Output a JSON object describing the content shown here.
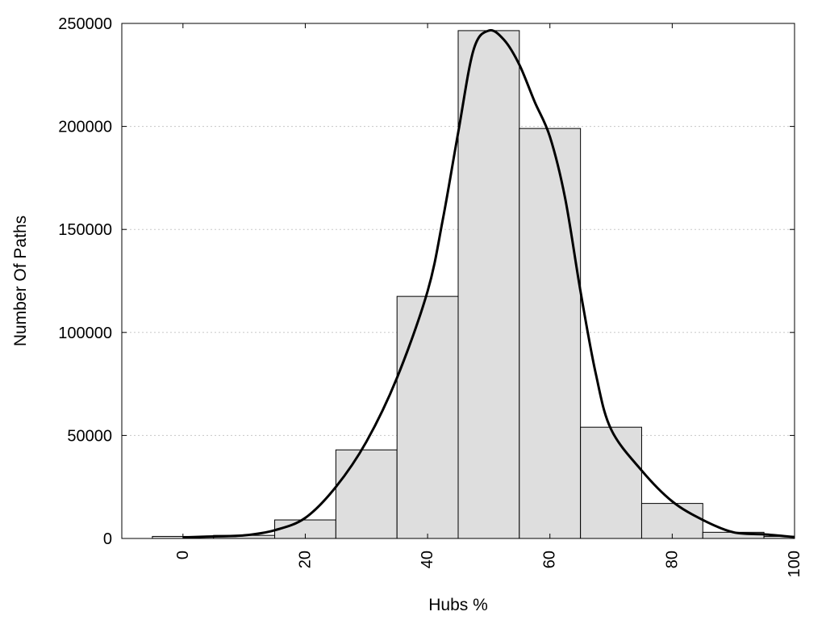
{
  "chart_data": {
    "type": "bar",
    "title": "",
    "xlabel": "Hubs %",
    "ylabel": "Number Of Paths",
    "xlim": [
      -10,
      100
    ],
    "ylim": [
      0,
      250000
    ],
    "grid": "horizontal-dotted",
    "legend": "none",
    "x_ticks": [
      "0",
      "20",
      "40",
      "60",
      "80",
      "100"
    ],
    "y_ticks": [
      "0",
      "50000",
      "100000",
      "150000",
      "200000",
      "250000"
    ],
    "bins": [
      {
        "x0": -5,
        "x1": 5,
        "value": 1000
      },
      {
        "x0": 5,
        "x1": 15,
        "value": 1500
      },
      {
        "x0": 15,
        "x1": 25,
        "value": 9000
      },
      {
        "x0": 25,
        "x1": 35,
        "value": 43000
      },
      {
        "x0": 35,
        "x1": 45,
        "value": 117500
      },
      {
        "x0": 45,
        "x1": 55,
        "value": 246500
      },
      {
        "x0": 55,
        "x1": 65,
        "value": 199000
      },
      {
        "x0": 65,
        "x1": 75,
        "value": 54000
      },
      {
        "x0": 75,
        "x1": 85,
        "value": 17000
      },
      {
        "x0": 85,
        "x1": 95,
        "value": 3000
      },
      {
        "x0": 95,
        "x1": 100,
        "value": 1000
      }
    ],
    "density_curve": {
      "x": [
        0,
        5,
        10,
        15,
        20,
        25,
        30,
        35,
        40,
        42.5,
        45,
        47.5,
        50,
        52.5,
        55,
        57.5,
        60,
        62.5,
        65,
        67.5,
        70,
        75,
        80,
        85,
        90,
        95,
        100
      ],
      "y": [
        500,
        1000,
        1500,
        4000,
        10000,
        25000,
        47000,
        78000,
        120000,
        155000,
        197000,
        237000,
        246500,
        242000,
        230000,
        212000,
        195000,
        165000,
        120000,
        80000,
        53000,
        33000,
        18000,
        9000,
        3000,
        2000,
        700
      ]
    },
    "bar_fill": "#dedede",
    "bar_stroke": "#000000",
    "curve_color": "#000000",
    "grid_color": "#c8c8c8"
  }
}
